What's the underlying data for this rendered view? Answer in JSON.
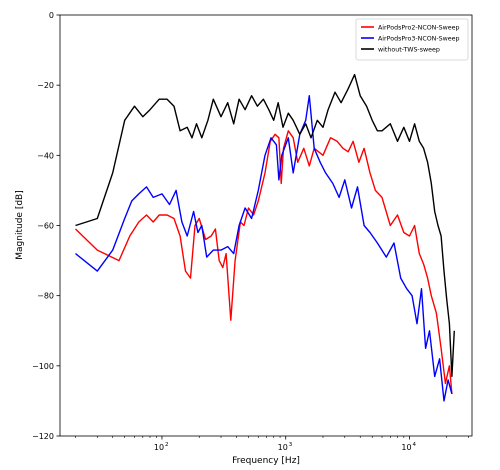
{
  "chart_data": {
    "type": "line",
    "title": "",
    "xlabel": "Frequency [Hz]",
    "ylabel": "Magnitude [dB]",
    "xscale": "log",
    "xlim": [
      15,
      32000
    ],
    "ylim": [
      -120,
      0
    ],
    "x_ticks": [
      {
        "value": 100,
        "label": "10",
        "sup": "2"
      },
      {
        "value": 1000,
        "label": "10",
        "sup": "3"
      },
      {
        "value": 10000,
        "label": "10",
        "sup": "4"
      }
    ],
    "y_ticks": [
      0,
      -20,
      -40,
      -60,
      -80,
      -100,
      -120
    ],
    "grid": false,
    "legend_position": "top-right",
    "series": [
      {
        "name": "AirPodsPro2-NCON-Sweep",
        "color": "#ff0000",
        "points": [
          [
            20,
            -61
          ],
          [
            30,
            -67
          ],
          [
            45,
            -70
          ],
          [
            55,
            -63
          ],
          [
            65,
            -59
          ],
          [
            75,
            -57
          ],
          [
            85,
            -59
          ],
          [
            95,
            -57
          ],
          [
            110,
            -57
          ],
          [
            125,
            -58
          ],
          [
            140,
            -63
          ],
          [
            155,
            -73
          ],
          [
            170,
            -75
          ],
          [
            185,
            -60
          ],
          [
            200,
            -58
          ],
          [
            225,
            -64
          ],
          [
            250,
            -63
          ],
          [
            270,
            -61
          ],
          [
            290,
            -70
          ],
          [
            310,
            -72
          ],
          [
            330,
            -68
          ],
          [
            360,
            -87
          ],
          [
            390,
            -70
          ],
          [
            430,
            -59
          ],
          [
            460,
            -60
          ],
          [
            500,
            -55
          ],
          [
            550,
            -57
          ],
          [
            600,
            -53
          ],
          [
            680,
            -45
          ],
          [
            750,
            -36
          ],
          [
            820,
            -34
          ],
          [
            880,
            -35
          ],
          [
            920,
            -48
          ],
          [
            960,
            -38
          ],
          [
            1050,
            -33
          ],
          [
            1150,
            -35
          ],
          [
            1250,
            -42
          ],
          [
            1400,
            -38
          ],
          [
            1550,
            -43
          ],
          [
            1700,
            -38
          ],
          [
            2000,
            -40
          ],
          [
            2300,
            -35
          ],
          [
            2600,
            -36
          ],
          [
            2900,
            -38
          ],
          [
            3200,
            -39
          ],
          [
            3500,
            -36
          ],
          [
            3900,
            -42
          ],
          [
            4300,
            -38
          ],
          [
            4800,
            -45
          ],
          [
            5300,
            -50
          ],
          [
            6000,
            -52
          ],
          [
            7000,
            -60
          ],
          [
            8000,
            -57
          ],
          [
            9000,
            -62
          ],
          [
            10000,
            -63
          ],
          [
            11000,
            -60
          ],
          [
            12000,
            -68
          ],
          [
            13000,
            -71
          ],
          [
            14000,
            -75
          ],
          [
            15000,
            -80
          ],
          [
            16500,
            -85
          ],
          [
            18000,
            -95
          ],
          [
            19500,
            -105
          ],
          [
            21000,
            -100
          ],
          [
            22000,
            -108
          ]
        ]
      },
      {
        "name": "AirPodsPro3-NCON-Sweep",
        "color": "#0000ff",
        "points": [
          [
            20,
            -68
          ],
          [
            30,
            -73
          ],
          [
            40,
            -67
          ],
          [
            50,
            -58
          ],
          [
            57,
            -53
          ],
          [
            65,
            -51
          ],
          [
            75,
            -49
          ],
          [
            85,
            -52
          ],
          [
            100,
            -51
          ],
          [
            115,
            -54
          ],
          [
            130,
            -50
          ],
          [
            145,
            -59
          ],
          [
            160,
            -63
          ],
          [
            180,
            -56
          ],
          [
            195,
            -62
          ],
          [
            210,
            -60
          ],
          [
            230,
            -69
          ],
          [
            260,
            -67
          ],
          [
            300,
            -67
          ],
          [
            340,
            -66
          ],
          [
            380,
            -68
          ],
          [
            420,
            -60
          ],
          [
            470,
            -55
          ],
          [
            530,
            -58
          ],
          [
            600,
            -50
          ],
          [
            680,
            -40
          ],
          [
            760,
            -35
          ],
          [
            840,
            -37
          ],
          [
            880,
            -47
          ],
          [
            930,
            -40
          ],
          [
            1050,
            -35
          ],
          [
            1150,
            -45
          ],
          [
            1300,
            -34
          ],
          [
            1450,
            -30
          ],
          [
            1550,
            -23
          ],
          [
            1700,
            -38
          ],
          [
            1900,
            -42
          ],
          [
            2100,
            -45
          ],
          [
            2400,
            -48
          ],
          [
            2700,
            -52
          ],
          [
            3000,
            -47
          ],
          [
            3400,
            -55
          ],
          [
            3800,
            -49
          ],
          [
            4300,
            -60
          ],
          [
            4800,
            -62
          ],
          [
            5500,
            -65
          ],
          [
            6500,
            -69
          ],
          [
            7500,
            -65
          ],
          [
            8500,
            -75
          ],
          [
            9500,
            -78
          ],
          [
            10500,
            -80
          ],
          [
            11500,
            -88
          ],
          [
            12500,
            -78
          ],
          [
            13500,
            -95
          ],
          [
            14500,
            -90
          ],
          [
            16000,
            -103
          ],
          [
            17500,
            -98
          ],
          [
            19000,
            -110
          ],
          [
            20500,
            -104
          ],
          [
            22000,
            -108
          ]
        ]
      },
      {
        "name": "without-TWS-sweep",
        "color": "#000000",
        "points": [
          [
            20,
            -60
          ],
          [
            30,
            -58
          ],
          [
            40,
            -45
          ],
          [
            50,
            -30
          ],
          [
            60,
            -26
          ],
          [
            70,
            -29
          ],
          [
            80,
            -27
          ],
          [
            95,
            -24
          ],
          [
            110,
            -24
          ],
          [
            125,
            -26
          ],
          [
            140,
            -33
          ],
          [
            160,
            -32
          ],
          [
            175,
            -35
          ],
          [
            190,
            -31
          ],
          [
            210,
            -35
          ],
          [
            235,
            -30
          ],
          [
            260,
            -24
          ],
          [
            300,
            -29
          ],
          [
            340,
            -25
          ],
          [
            380,
            -31
          ],
          [
            420,
            -24
          ],
          [
            470,
            -27
          ],
          [
            530,
            -23
          ],
          [
            590,
            -26
          ],
          [
            660,
            -24
          ],
          [
            730,
            -27
          ],
          [
            800,
            -30
          ],
          [
            870,
            -25
          ],
          [
            950,
            -32
          ],
          [
            1050,
            -28
          ],
          [
            1150,
            -30
          ],
          [
            1300,
            -34
          ],
          [
            1450,
            -31
          ],
          [
            1600,
            -35
          ],
          [
            1800,
            -30
          ],
          [
            2000,
            -32
          ],
          [
            2200,
            -27
          ],
          [
            2500,
            -22
          ],
          [
            2800,
            -25
          ],
          [
            3200,
            -21
          ],
          [
            3600,
            -17
          ],
          [
            4000,
            -23
          ],
          [
            4500,
            -26
          ],
          [
            5000,
            -30
          ],
          [
            5500,
            -33
          ],
          [
            6000,
            -33
          ],
          [
            7000,
            -31
          ],
          [
            8000,
            -36
          ],
          [
            9000,
            -32
          ],
          [
            10000,
            -36
          ],
          [
            11000,
            -31
          ],
          [
            12000,
            -36
          ],
          [
            13000,
            -38
          ],
          [
            14000,
            -42
          ],
          [
            15000,
            -48
          ],
          [
            16000,
            -56
          ],
          [
            17000,
            -60
          ],
          [
            18000,
            -63
          ],
          [
            19000,
            -73
          ],
          [
            20000,
            -81
          ],
          [
            21000,
            -88
          ],
          [
            22000,
            -103
          ],
          [
            23000,
            -90
          ]
        ]
      }
    ]
  }
}
